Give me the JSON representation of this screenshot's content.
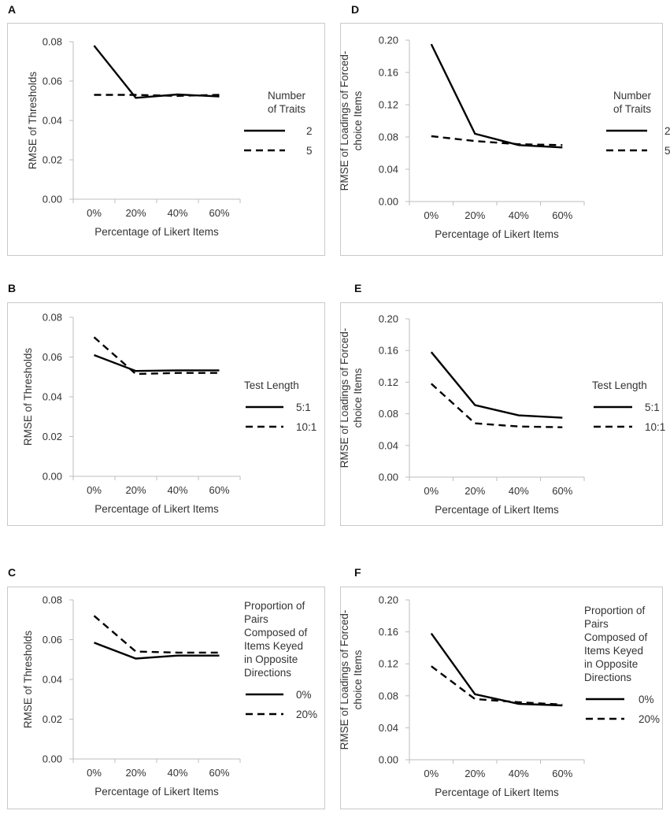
{
  "chart_data": [
    {
      "id": "A",
      "panel_label": "A",
      "type": "line",
      "title": "",
      "xlabel": "Percentage of Likert Items",
      "ylabel": "RMSE of Thresholds",
      "ylabel_lines": [
        "RMSE of Thresholds"
      ],
      "categories": [
        "0%",
        "20%",
        "40%",
        "60%"
      ],
      "yticks": [
        "0.00",
        "0.02",
        "0.04",
        "0.06",
        "0.08"
      ],
      "ylim": [
        0,
        0.08
      ],
      "legend_title_lines": [
        "Number",
        "of Traits"
      ],
      "series": [
        {
          "name": "2",
          "style": "solid",
          "values": [
            0.078,
            0.0515,
            0.0532,
            0.0522
          ]
        },
        {
          "name": "5",
          "style": "dashed",
          "values": [
            0.053,
            0.053,
            0.0525,
            0.053
          ]
        }
      ]
    },
    {
      "id": "B",
      "panel_label": "B",
      "type": "line",
      "title": "",
      "xlabel": "Percentage of Likert Items",
      "ylabel": "RMSE of Thresholds",
      "ylabel_lines": [
        "RMSE of Thresholds"
      ],
      "categories": [
        "0%",
        "20%",
        "40%",
        "60%"
      ],
      "yticks": [
        "0.00",
        "0.02",
        "0.04",
        "0.06",
        "0.08"
      ],
      "ylim": [
        0,
        0.08
      ],
      "legend_title_lines": [
        "Test Length"
      ],
      "series": [
        {
          "name": "5:1",
          "style": "solid",
          "values": [
            0.061,
            0.053,
            0.0533,
            0.0533
          ]
        },
        {
          "name": "10:1",
          "style": "dashed",
          "values": [
            0.07,
            0.0515,
            0.052,
            0.052
          ]
        }
      ]
    },
    {
      "id": "C",
      "panel_label": "C",
      "type": "line",
      "title": "",
      "xlabel": "Percentage of Likert Items",
      "ylabel": "RMSE of Thresholds",
      "ylabel_lines": [
        "RMSE of Thresholds"
      ],
      "categories": [
        "0%",
        "20%",
        "40%",
        "60%"
      ],
      "yticks": [
        "0.00",
        "0.02",
        "0.04",
        "0.06",
        "0.08"
      ],
      "ylim": [
        0,
        0.08
      ],
      "legend_title_lines": [
        "Proportion of",
        "Pairs",
        "Composed of",
        "Items Keyed",
        "in Opposite",
        "Directions"
      ],
      "series": [
        {
          "name": "0%",
          "style": "solid",
          "values": [
            0.0585,
            0.0505,
            0.052,
            0.052
          ]
        },
        {
          "name": "20%",
          "style": "dashed",
          "values": [
            0.072,
            0.054,
            0.0535,
            0.0535
          ]
        }
      ]
    },
    {
      "id": "D",
      "panel_label": "D",
      "type": "line",
      "title": "",
      "xlabel": "Percentage of Likert Items",
      "ylabel": "RMSE of Loadings of Forced-choice Items",
      "ylabel_lines": [
        "RMSE of Loadings of Forced-",
        "choice Items"
      ],
      "categories": [
        "0%",
        "20%",
        "40%",
        "60%"
      ],
      "yticks": [
        "0.00",
        "0.04",
        "0.08",
        "0.12",
        "0.16",
        "0.20"
      ],
      "ylim": [
        0,
        0.2
      ],
      "legend_title_lines": [
        "Number",
        "of Traits"
      ],
      "series": [
        {
          "name": "2",
          "style": "solid",
          "values": [
            0.195,
            0.084,
            0.07,
            0.067
          ]
        },
        {
          "name": "5",
          "style": "dashed",
          "values": [
            0.081,
            0.075,
            0.071,
            0.07
          ]
        }
      ]
    },
    {
      "id": "E",
      "panel_label": "E",
      "type": "line",
      "title": "",
      "xlabel": "Percentage of Likert Items",
      "ylabel": "RMSE of Loadings of Forced-choice Items",
      "ylabel_lines": [
        "RMSE of Loadings of Forced-",
        "choice Items"
      ],
      "categories": [
        "0%",
        "20%",
        "40%",
        "60%"
      ],
      "yticks": [
        "0.00",
        "0.04",
        "0.08",
        "0.12",
        "0.16",
        "0.20"
      ],
      "ylim": [
        0,
        0.2
      ],
      "legend_title_lines": [
        "Test Length"
      ],
      "series": [
        {
          "name": "5:1",
          "style": "solid",
          "values": [
            0.158,
            0.091,
            0.078,
            0.075
          ]
        },
        {
          "name": "10:1",
          "style": "dashed",
          "values": [
            0.118,
            0.068,
            0.064,
            0.063
          ]
        }
      ]
    },
    {
      "id": "F",
      "panel_label": "F",
      "type": "line",
      "title": "",
      "xlabel": "Percentage of Likert Items",
      "ylabel": "RMSE of Loadings of Forced-choice Items",
      "ylabel_lines": [
        "RMSE of Loadings of Forced-",
        "choice Items"
      ],
      "categories": [
        "0%",
        "20%",
        "40%",
        "60%"
      ],
      "yticks": [
        "0.00",
        "0.04",
        "0.08",
        "0.12",
        "0.16",
        "0.20"
      ],
      "ylim": [
        0,
        0.2
      ],
      "legend_title_lines": [
        "Proportion of",
        "Pairs",
        "Composed of",
        "Items Keyed",
        "in Opposite",
        "Directions"
      ],
      "series": [
        {
          "name": "0%",
          "style": "solid",
          "values": [
            0.158,
            0.082,
            0.07,
            0.068
          ]
        },
        {
          "name": "20%",
          "style": "dashed",
          "values": [
            0.117,
            0.076,
            0.072,
            0.069
          ]
        }
      ]
    }
  ]
}
